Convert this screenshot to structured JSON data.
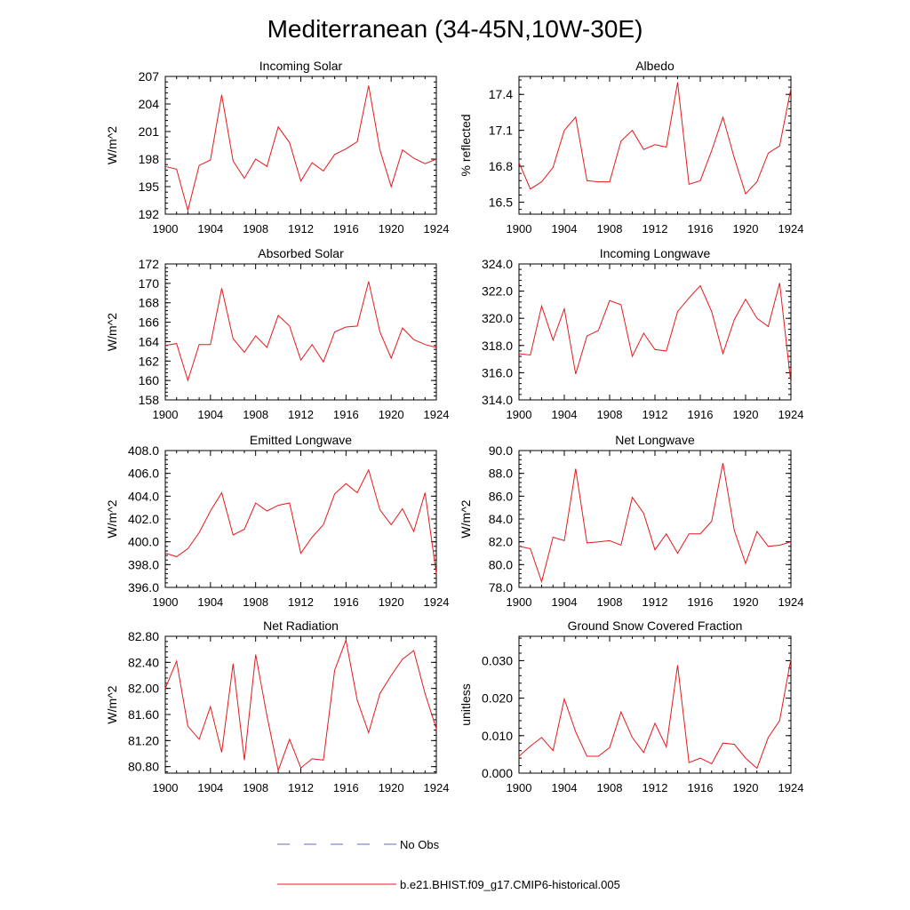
{
  "figure_title": "Mediterranean (34-45N,10W-30E)",
  "legend": [
    {
      "label": "No Obs",
      "color": "#6a6ac8",
      "dash": true
    },
    {
      "label": "b.e21.BHIST.f09_g17.CMIP6-historical.005",
      "color": "#e41a1c",
      "dash": false
    }
  ],
  "colors": {
    "model_line": "#e41a1c",
    "obs_line": "#6a6ac8",
    "axis": "#000000"
  },
  "chart_data": [
    {
      "type": "line",
      "title": "Incoming Solar",
      "ylabel": "W/m^2",
      "xlim": [
        1900,
        1924
      ],
      "ylim": [
        192,
        207
      ],
      "xticks": [
        1900,
        1904,
        1908,
        1912,
        1916,
        1920,
        1924
      ],
      "yticks": [
        "192",
        "195",
        "198",
        "201",
        "204",
        "207"
      ],
      "x": [
        1900,
        1901,
        1902,
        1903,
        1904,
        1905,
        1906,
        1907,
        1908,
        1909,
        1910,
        1911,
        1912,
        1913,
        1914,
        1915,
        1916,
        1917,
        1918,
        1919,
        1920,
        1921,
        1922,
        1923,
        1924
      ],
      "series": [
        {
          "name": "b.e21.BHIST.f09_g17.CMIP6-historical.005",
          "values": [
            197.2,
            196.9,
            192.4,
            197.3,
            197.9,
            205.0,
            197.8,
            195.9,
            198.0,
            197.2,
            201.5,
            199.8,
            195.6,
            197.6,
            196.7,
            198.5,
            199.1,
            199.9,
            206.0,
            199.0,
            195.0,
            199.0,
            198.1,
            197.5,
            198.0
          ]
        }
      ]
    },
    {
      "type": "line",
      "title": "Albedo",
      "ylabel": "% reflected",
      "xlim": [
        1900,
        1924
      ],
      "ylim": [
        16.4,
        17.55
      ],
      "xticks": [
        1900,
        1904,
        1908,
        1912,
        1916,
        1920,
        1924
      ],
      "yticks": [
        "16.5",
        "16.8",
        "17.1",
        "17.4"
      ],
      "x": [
        1900,
        1901,
        1902,
        1903,
        1904,
        1905,
        1906,
        1907,
        1908,
        1909,
        1910,
        1911,
        1912,
        1913,
        1914,
        1915,
        1916,
        1917,
        1918,
        1919,
        1920,
        1921,
        1922,
        1923,
        1924
      ],
      "series": [
        {
          "name": "b.e21.BHIST.f09_g17.CMIP6-historical.005",
          "values": [
            16.83,
            16.61,
            16.67,
            16.79,
            17.1,
            17.21,
            16.68,
            16.67,
            16.67,
            17.01,
            17.1,
            16.94,
            16.98,
            16.96,
            17.5,
            16.65,
            16.68,
            16.93,
            17.21,
            16.87,
            16.57,
            16.67,
            16.91,
            16.97,
            17.45
          ]
        }
      ]
    },
    {
      "type": "line",
      "title": "Absorbed Solar",
      "ylabel": "W/m^2",
      "xlim": [
        1900,
        1924
      ],
      "ylim": [
        158,
        172
      ],
      "xticks": [
        1900,
        1904,
        1908,
        1912,
        1916,
        1920,
        1924
      ],
      "yticks": [
        "158",
        "160",
        "162",
        "164",
        "166",
        "168",
        "170",
        "172"
      ],
      "x": [
        1900,
        1901,
        1902,
        1903,
        1904,
        1905,
        1906,
        1907,
        1908,
        1909,
        1910,
        1911,
        1912,
        1913,
        1914,
        1915,
        1916,
        1917,
        1918,
        1919,
        1920,
        1921,
        1922,
        1923,
        1924
      ],
      "series": [
        {
          "name": "b.e21.BHIST.f09_g17.CMIP6-historical.005",
          "values": [
            163.6,
            163.8,
            160.0,
            163.7,
            163.7,
            169.5,
            164.3,
            162.9,
            164.6,
            163.4,
            166.7,
            165.6,
            162.1,
            163.7,
            161.9,
            165.0,
            165.5,
            165.6,
            170.2,
            165.0,
            162.3,
            165.4,
            164.2,
            163.7,
            163.4
          ]
        }
      ]
    },
    {
      "type": "line",
      "title": "Incoming Longwave",
      "ylabel": "",
      "xlim": [
        1900,
        1924
      ],
      "ylim": [
        314,
        324
      ],
      "xticks": [
        1900,
        1904,
        1908,
        1912,
        1916,
        1920,
        1924
      ],
      "yticks": [
        "314.0",
        "316.0",
        "318.0",
        "320.0",
        "322.0",
        "324.0"
      ],
      "x": [
        1900,
        1901,
        1902,
        1903,
        1904,
        1905,
        1906,
        1907,
        1908,
        1909,
        1910,
        1911,
        1912,
        1913,
        1914,
        1915,
        1916,
        1917,
        1918,
        1919,
        1920,
        1921,
        1922,
        1923,
        1924
      ],
      "series": [
        {
          "name": "b.e21.BHIST.f09_g17.CMIP6-historical.005",
          "values": [
            317.4,
            317.3,
            320.9,
            318.4,
            320.7,
            315.9,
            318.7,
            319.1,
            321.3,
            321.0,
            317.2,
            318.9,
            317.7,
            317.6,
            320.5,
            321.5,
            322.4,
            320.5,
            317.4,
            319.9,
            321.4,
            320.0,
            319.4,
            322.6,
            315.2
          ]
        }
      ]
    },
    {
      "type": "line",
      "title": "Emitted Longwave",
      "ylabel": "W/m^2",
      "xlim": [
        1900,
        1924
      ],
      "ylim": [
        396,
        408
      ],
      "xticks": [
        1900,
        1904,
        1908,
        1912,
        1916,
        1920,
        1924
      ],
      "yticks": [
        "396.0",
        "398.0",
        "400.0",
        "402.0",
        "404.0",
        "406.0",
        "408.0"
      ],
      "x": [
        1900,
        1901,
        1902,
        1903,
        1904,
        1905,
        1906,
        1907,
        1908,
        1909,
        1910,
        1911,
        1912,
        1913,
        1914,
        1915,
        1916,
        1917,
        1918,
        1919,
        1920,
        1921,
        1922,
        1923,
        1924
      ],
      "series": [
        {
          "name": "b.e21.BHIST.f09_g17.CMIP6-historical.005",
          "values": [
            399.0,
            398.7,
            399.4,
            400.8,
            402.7,
            404.3,
            400.6,
            401.1,
            403.4,
            402.7,
            403.2,
            403.4,
            399.0,
            400.4,
            401.5,
            404.2,
            405.1,
            404.3,
            406.3,
            402.8,
            401.5,
            402.9,
            400.9,
            404.3,
            397.2
          ]
        }
      ]
    },
    {
      "type": "line",
      "title": "Net Longwave",
      "ylabel": "W/m^2",
      "xlim": [
        1900,
        1924
      ],
      "ylim": [
        78,
        90
      ],
      "xticks": [
        1900,
        1904,
        1908,
        1912,
        1916,
        1920,
        1924
      ],
      "yticks": [
        "78.0",
        "80.0",
        "82.0",
        "84.0",
        "86.0",
        "88.0",
        "90.0"
      ],
      "x": [
        1900,
        1901,
        1902,
        1903,
        1904,
        1905,
        1906,
        1907,
        1908,
        1909,
        1910,
        1911,
        1912,
        1913,
        1914,
        1915,
        1916,
        1917,
        1918,
        1919,
        1920,
        1921,
        1922,
        1923,
        1924
      ],
      "series": [
        {
          "name": "b.e21.BHIST.f09_g17.CMIP6-historical.005",
          "values": [
            81.6,
            81.4,
            78.5,
            82.4,
            82.1,
            88.4,
            81.9,
            82.0,
            82.1,
            81.7,
            85.9,
            84.5,
            81.3,
            82.7,
            81.0,
            82.7,
            82.7,
            83.8,
            88.9,
            83.0,
            80.1,
            82.9,
            81.6,
            81.7,
            82.0
          ]
        }
      ]
    },
    {
      "type": "line",
      "title": "Net Radiation",
      "ylabel": "W/m^2",
      "xlim": [
        1900,
        1924
      ],
      "ylim": [
        80.7,
        82.8
      ],
      "xticks": [
        1900,
        1904,
        1908,
        1912,
        1916,
        1920,
        1924
      ],
      "yticks": [
        "80.80",
        "81.20",
        "81.60",
        "82.00",
        "82.40",
        "82.80"
      ],
      "x": [
        1900,
        1901,
        1902,
        1903,
        1904,
        1905,
        1906,
        1907,
        1908,
        1909,
        1910,
        1911,
        1912,
        1913,
        1914,
        1915,
        1916,
        1917,
        1918,
        1919,
        1920,
        1921,
        1922,
        1923,
        1924
      ],
      "series": [
        {
          "name": "b.e21.BHIST.f09_g17.CMIP6-historical.005",
          "values": [
            82.0,
            82.42,
            81.42,
            81.22,
            81.72,
            81.02,
            82.38,
            80.9,
            82.52,
            81.58,
            80.74,
            81.22,
            80.78,
            80.92,
            80.9,
            82.28,
            82.74,
            81.82,
            81.32,
            81.92,
            82.2,
            82.45,
            82.58,
            81.92,
            81.38
          ]
        }
      ]
    },
    {
      "type": "line",
      "title": "Ground Snow Covered Fraction",
      "ylabel": "unitless",
      "xlim": [
        1900,
        1924
      ],
      "ylim": [
        0,
        0.0365
      ],
      "xticks": [
        1900,
        1904,
        1908,
        1912,
        1916,
        1920,
        1924
      ],
      "yticks": [
        "0.000",
        "0.010",
        "0.020",
        "0.030"
      ],
      "x": [
        1900,
        1901,
        1902,
        1903,
        1904,
        1905,
        1906,
        1907,
        1908,
        1909,
        1910,
        1911,
        1912,
        1913,
        1914,
        1915,
        1916,
        1917,
        1918,
        1919,
        1920,
        1921,
        1922,
        1923,
        1924
      ],
      "series": [
        {
          "name": "b.e21.BHIST.f09_g17.CMIP6-historical.005",
          "values": [
            0.0045,
            0.0072,
            0.0095,
            0.006,
            0.0198,
            0.011,
            0.0045,
            0.0045,
            0.0068,
            0.0163,
            0.0095,
            0.0055,
            0.0133,
            0.007,
            0.0288,
            0.0028,
            0.004,
            0.0025,
            0.008,
            0.0077,
            0.004,
            0.0013,
            0.0095,
            0.014,
            0.0305
          ]
        }
      ]
    }
  ]
}
